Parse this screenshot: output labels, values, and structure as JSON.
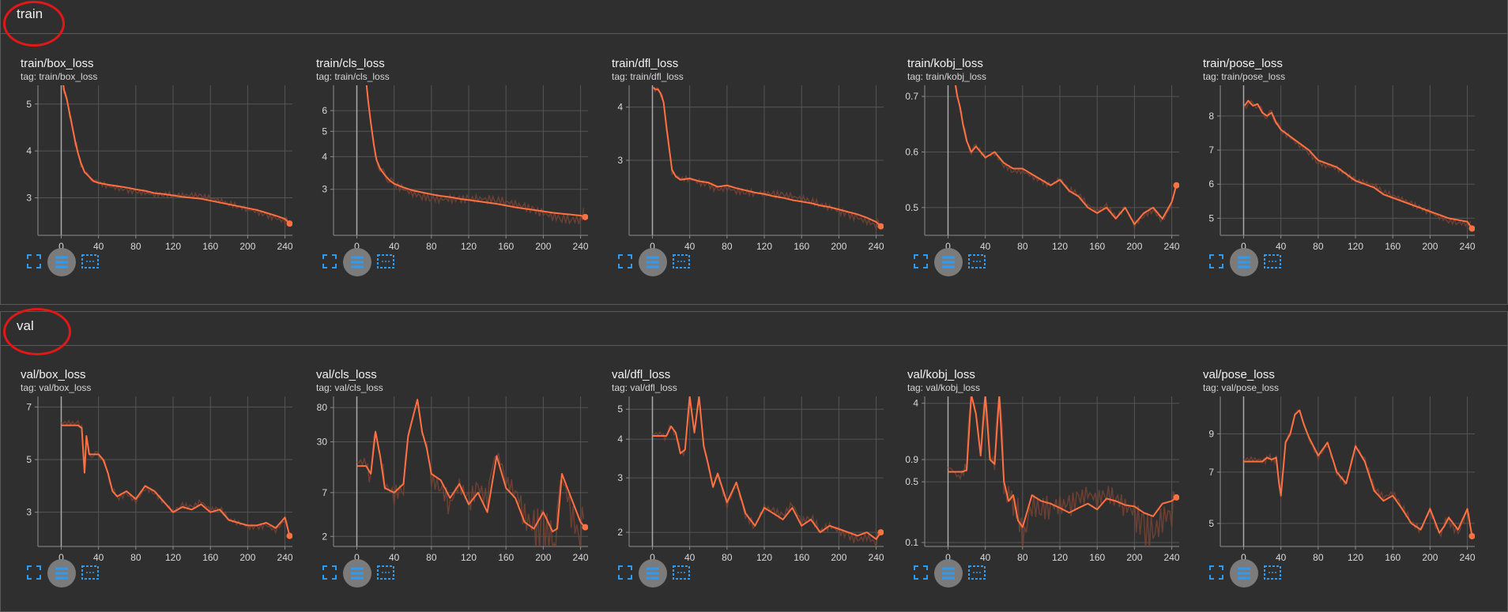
{
  "colors": {
    "line": "#ff7043",
    "line_faint": "#7a4534",
    "grid": "#555555",
    "axis": "#8c8c8c",
    "tick": "#d9d9d9",
    "highlight_circle": "#e01818",
    "tool_icon": "#2f9bf0"
  },
  "tool_icons": [
    "fullscreen-icon",
    "toggle-y-log-scale-icon",
    "fit-domain-icon"
  ],
  "sections": [
    {
      "title": "train",
      "cards": [
        {
          "title": "train/box_loss",
          "tag": "tag: train/box_loss"
        },
        {
          "title": "train/cls_loss",
          "tag": "tag: train/cls_loss"
        },
        {
          "title": "train/dfl_loss",
          "tag": "tag: train/dfl_loss"
        },
        {
          "title": "train/kobj_loss",
          "tag": "tag: train/kobj_loss"
        },
        {
          "title": "train/pose_loss",
          "tag": "tag: train/pose_loss"
        }
      ]
    },
    {
      "title": "val",
      "cards": [
        {
          "title": "val/box_loss",
          "tag": "tag: val/box_loss"
        },
        {
          "title": "val/cls_loss",
          "tag": "tag: val/cls_loss"
        },
        {
          "title": "val/dfl_loss",
          "tag": "tag: val/dfl_loss"
        },
        {
          "title": "val/kobj_loss",
          "tag": "tag: val/kobj_loss"
        },
        {
          "title": "val/pose_loss",
          "tag": "tag: val/pose_loss"
        }
      ]
    }
  ],
  "chart_data": [
    {
      "id": "train/box_loss",
      "type": "line",
      "scale": "linear",
      "xlim": [
        -25,
        248
      ],
      "ylim": [
        2.2,
        5.4
      ],
      "yticks": [
        5,
        4,
        3
      ],
      "xticks": [
        0,
        40,
        80,
        120,
        160,
        200,
        240
      ],
      "x": [
        1,
        3,
        6,
        9,
        12,
        15,
        18,
        21,
        25,
        30,
        35,
        40,
        50,
        60,
        70,
        80,
        90,
        100,
        110,
        120,
        130,
        140,
        150,
        160,
        170,
        180,
        190,
        200,
        210,
        220,
        230,
        240,
        245
      ],
      "y": [
        5.6,
        5.3,
        5.1,
        4.8,
        4.5,
        4.2,
        3.95,
        3.75,
        3.55,
        3.45,
        3.35,
        3.32,
        3.28,
        3.25,
        3.22,
        3.18,
        3.15,
        3.1,
        3.08,
        3.05,
        3.02,
        3.0,
        2.98,
        2.94,
        2.9,
        2.86,
        2.82,
        2.78,
        2.74,
        2.68,
        2.62,
        2.55,
        2.45
      ]
    },
    {
      "id": "train/cls_loss",
      "type": "line",
      "scale": "log",
      "xlim": [
        -25,
        248
      ],
      "ylim": [
        2.0,
        7.5
      ],
      "yticks": [
        6,
        5,
        4,
        3
      ],
      "xticks": [
        0,
        40,
        80,
        120,
        160,
        200,
        240
      ],
      "x": [
        10,
        12,
        15,
        18,
        21,
        25,
        30,
        35,
        40,
        50,
        60,
        70,
        80,
        90,
        100,
        110,
        120,
        130,
        140,
        150,
        160,
        170,
        180,
        190,
        200,
        210,
        220,
        230,
        240,
        245
      ],
      "y": [
        7.8,
        6.6,
        5.4,
        4.5,
        3.9,
        3.6,
        3.4,
        3.25,
        3.15,
        3.05,
        2.97,
        2.92,
        2.87,
        2.83,
        2.8,
        2.76,
        2.73,
        2.7,
        2.67,
        2.64,
        2.6,
        2.56,
        2.53,
        2.5,
        2.47,
        2.44,
        2.42,
        2.4,
        2.38,
        2.35
      ]
    },
    {
      "id": "train/dfl_loss",
      "type": "line",
      "scale": "log",
      "xlim": [
        -25,
        248
      ],
      "ylim": [
        2.0,
        4.5
      ],
      "yticks": [
        4,
        3
      ],
      "xticks": [
        0,
        40,
        80,
        120,
        160,
        200,
        240
      ],
      "x": [
        1,
        3,
        6,
        9,
        12,
        15,
        18,
        21,
        25,
        30,
        40,
        50,
        60,
        70,
        80,
        90,
        100,
        110,
        120,
        130,
        140,
        150,
        160,
        170,
        180,
        190,
        200,
        210,
        220,
        230,
        240,
        245
      ],
      "y": [
        4.45,
        4.4,
        4.4,
        4.3,
        4.1,
        3.6,
        3.2,
        2.85,
        2.75,
        2.7,
        2.72,
        2.68,
        2.66,
        2.6,
        2.62,
        2.58,
        2.55,
        2.52,
        2.5,
        2.47,
        2.45,
        2.42,
        2.4,
        2.38,
        2.35,
        2.33,
        2.3,
        2.27,
        2.24,
        2.2,
        2.15,
        2.1
      ]
    },
    {
      "id": "train/kobj_loss",
      "type": "line",
      "scale": "linear",
      "xlim": [
        -25,
        248
      ],
      "ylim": [
        0.45,
        0.72
      ],
      "yticks": [
        0.7,
        0.6,
        0.5
      ],
      "xticks": [
        0,
        40,
        80,
        120,
        160,
        200,
        240
      ],
      "x": [
        8,
        10,
        13,
        16,
        20,
        25,
        30,
        40,
        50,
        60,
        70,
        80,
        90,
        100,
        110,
        120,
        130,
        140,
        150,
        160,
        170,
        180,
        190,
        200,
        210,
        220,
        230,
        240,
        245
      ],
      "y": [
        0.72,
        0.7,
        0.68,
        0.65,
        0.62,
        0.6,
        0.61,
        0.59,
        0.6,
        0.58,
        0.57,
        0.57,
        0.56,
        0.55,
        0.54,
        0.55,
        0.53,
        0.52,
        0.5,
        0.49,
        0.5,
        0.48,
        0.5,
        0.47,
        0.49,
        0.5,
        0.48,
        0.51,
        0.54
      ]
    },
    {
      "id": "train/pose_loss",
      "type": "line",
      "scale": "linear",
      "xlim": [
        -25,
        248
      ],
      "ylim": [
        4.5,
        8.9
      ],
      "yticks": [
        8,
        7,
        6,
        5
      ],
      "xticks": [
        0,
        40,
        80,
        120,
        160,
        200,
        240
      ],
      "x": [
        1,
        5,
        10,
        15,
        20,
        25,
        30,
        35,
        40,
        50,
        60,
        70,
        80,
        90,
        100,
        110,
        120,
        130,
        140,
        150,
        160,
        170,
        180,
        190,
        200,
        210,
        220,
        230,
        240,
        245
      ],
      "y": [
        8.3,
        8.45,
        8.3,
        8.35,
        8.1,
        8.0,
        8.1,
        7.8,
        7.6,
        7.4,
        7.2,
        7.0,
        6.7,
        6.6,
        6.5,
        6.3,
        6.1,
        6.0,
        5.9,
        5.7,
        5.6,
        5.5,
        5.4,
        5.3,
        5.2,
        5.1,
        5.0,
        4.95,
        4.9,
        4.7
      ]
    },
    {
      "id": "val/box_loss",
      "type": "line",
      "scale": "linear",
      "xlim": [
        -25,
        248
      ],
      "ylim": [
        1.7,
        7.4
      ],
      "yticks": [
        7,
        5,
        3
      ],
      "xticks": [
        0,
        40,
        80,
        120,
        160,
        200,
        240
      ],
      "x": [
        0,
        10,
        18,
        22,
        25,
        27,
        30,
        35,
        40,
        45,
        50,
        55,
        60,
        70,
        80,
        90,
        100,
        110,
        120,
        130,
        140,
        150,
        160,
        170,
        180,
        190,
        200,
        210,
        220,
        230,
        240,
        245
      ],
      "y": [
        6.3,
        6.3,
        6.3,
        6.2,
        4.5,
        5.9,
        5.2,
        5.2,
        5.2,
        5.0,
        4.5,
        3.8,
        3.6,
        3.8,
        3.5,
        4.0,
        3.8,
        3.4,
        3.0,
        3.2,
        3.1,
        3.3,
        3.0,
        3.1,
        2.7,
        2.6,
        2.5,
        2.5,
        2.6,
        2.4,
        2.8,
        2.1
      ]
    },
    {
      "id": "val/cls_loss",
      "type": "line",
      "scale": "log",
      "xlim": [
        -25,
        248
      ],
      "ylim": [
        1.5,
        110
      ],
      "yticks": [
        80,
        30,
        7,
        2
      ],
      "xticks": [
        0,
        40,
        80,
        120,
        160,
        200,
        240
      ],
      "x": [
        0,
        10,
        15,
        20,
        25,
        30,
        40,
        50,
        55,
        60,
        65,
        70,
        75,
        80,
        90,
        100,
        110,
        120,
        130,
        140,
        150,
        160,
        170,
        180,
        190,
        200,
        210,
        215,
        220,
        230,
        240,
        245
      ],
      "y": [
        15,
        15,
        12,
        40,
        20,
        8,
        7,
        9,
        35,
        60,
        100,
        40,
        25,
        12,
        10,
        6,
        9,
        5,
        7,
        4,
        20,
        8,
        6,
        3,
        2.5,
        4,
        2.3,
        2.5,
        12,
        6,
        3,
        2.6
      ]
    },
    {
      "id": "val/dfl_loss",
      "type": "line",
      "scale": "log",
      "xlim": [
        -25,
        248
      ],
      "ylim": [
        1.8,
        5.5
      ],
      "yticks": [
        5,
        4,
        3,
        2
      ],
      "xticks": [
        0,
        40,
        80,
        120,
        160,
        200,
        240
      ],
      "x": [
        0,
        10,
        15,
        20,
        25,
        30,
        35,
        40,
        45,
        50,
        55,
        60,
        65,
        70,
        80,
        90,
        100,
        110,
        120,
        130,
        140,
        150,
        160,
        170,
        180,
        190,
        200,
        210,
        220,
        230,
        240,
        245
      ],
      "y": [
        4.1,
        4.1,
        4.1,
        4.4,
        4.2,
        3.6,
        3.7,
        5.5,
        4.2,
        5.5,
        3.8,
        3.3,
        2.8,
        3.1,
        2.5,
        2.9,
        2.3,
        2.1,
        2.4,
        2.3,
        2.2,
        2.4,
        2.1,
        2.2,
        2.0,
        2.1,
        2.05,
        2.0,
        1.95,
        2.0,
        1.9,
        2.0
      ]
    },
    {
      "id": "val/kobj_loss",
      "type": "line",
      "scale": "log",
      "xlim": [
        -25,
        248
      ],
      "ylim": [
        0.09,
        4.8
      ],
      "yticks": [
        4,
        0.9,
        0.5,
        0.1
      ],
      "xticks": [
        0,
        40,
        80,
        120,
        160,
        200,
        240
      ],
      "x": [
        0,
        15,
        20,
        25,
        30,
        35,
        40,
        45,
        50,
        55,
        60,
        65,
        70,
        75,
        80,
        90,
        100,
        110,
        120,
        130,
        140,
        150,
        160,
        170,
        180,
        190,
        200,
        210,
        220,
        230,
        240,
        245
      ],
      "y": [
        0.65,
        0.65,
        0.68,
        5,
        3,
        1.0,
        5,
        0.9,
        0.8,
        5,
        0.5,
        0.3,
        0.35,
        0.18,
        0.15,
        0.35,
        0.3,
        0.28,
        0.25,
        0.22,
        0.25,
        0.28,
        0.24,
        0.32,
        0.3,
        0.27,
        0.26,
        0.22,
        0.2,
        0.28,
        0.3,
        0.33
      ]
    },
    {
      "id": "val/pose_loss",
      "type": "line",
      "scale": "log",
      "xlim": [
        -25,
        248
      ],
      "ylim": [
        4.3,
        11.5
      ],
      "yticks": [
        9,
        7,
        5
      ],
      "xticks": [
        0,
        40,
        80,
        120,
        160,
        200,
        240
      ],
      "x": [
        0,
        10,
        20,
        25,
        30,
        35,
        38,
        40,
        45,
        50,
        55,
        60,
        65,
        70,
        80,
        90,
        100,
        110,
        120,
        130,
        140,
        150,
        160,
        170,
        180,
        190,
        200,
        210,
        215,
        220,
        230,
        240,
        245
      ],
      "y": [
        7.5,
        7.5,
        7.5,
        7.7,
        7.6,
        7.7,
        6.5,
        6.0,
        8.5,
        9.0,
        10.2,
        10.5,
        9.5,
        8.8,
        7.8,
        8.5,
        7.0,
        6.5,
        8.3,
        7.5,
        6.2,
        5.8,
        6.0,
        5.5,
        5.0,
        4.8,
        5.5,
        4.7,
        4.9,
        5.2,
        4.8,
        5.5,
        4.6
      ]
    }
  ]
}
